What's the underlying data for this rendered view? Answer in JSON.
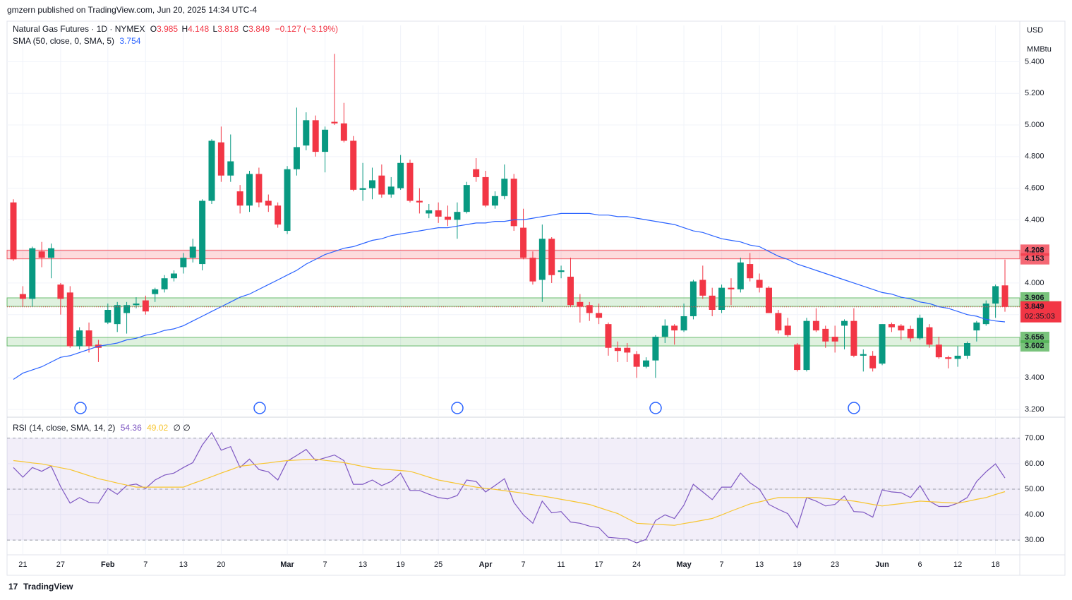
{
  "header": "gmzern published on TradingView.com, Jun 20, 2025 14:34 UTC-4",
  "footer": "TradingView",
  "chart_data": [
    {
      "type": "candlestick",
      "title": "Natural Gas Futures · 1D · NYMEX",
      "legend": {
        "o": "O",
        "h": "H",
        "l": "L",
        "c": "C",
        "change": "−0.127 (−3.19%)"
      },
      "currency": "USD",
      "unit": "MMBtu",
      "countdown": "02:35:03",
      "up_color": "#089981",
      "down_color": "#f23645",
      "categories": [
        null,
        "21",
        null,
        null,
        null,
        "27",
        null,
        null,
        null,
        null,
        "Feb",
        null,
        null,
        null,
        "7",
        null,
        null,
        null,
        "13",
        null,
        null,
        null,
        "20",
        null,
        null,
        null,
        null,
        null,
        null,
        "Mar",
        null,
        null,
        null,
        "7",
        null,
        null,
        null,
        "13",
        null,
        null,
        null,
        "19",
        null,
        null,
        null,
        "25",
        null,
        null,
        null,
        null,
        "Apr",
        null,
        null,
        null,
        "7",
        null,
        null,
        null,
        "11",
        null,
        null,
        null,
        "17",
        null,
        null,
        null,
        "24",
        null,
        null,
        null,
        null,
        "May",
        null,
        null,
        null,
        "7",
        null,
        null,
        null,
        "13",
        null,
        null,
        null,
        "19",
        null,
        null,
        null,
        "23",
        null,
        null,
        null,
        null,
        "Jun",
        null,
        null,
        null,
        "6",
        null,
        null,
        null,
        "12",
        null,
        null,
        null,
        "18",
        null
      ],
      "open": [
        4.51,
        3.93,
        3.9,
        4.2,
        4.16,
        3.99,
        3.94,
        3.6,
        3.7,
        3.61,
        3.75,
        3.74,
        3.81,
        3.86,
        3.89,
        3.93,
        3.96,
        4.03,
        4.1,
        4.16,
        4.12,
        4.52,
        4.89,
        4.68,
        4.58,
        4.49,
        4.69,
        4.52,
        4.49,
        4.33,
        4.72,
        4.87,
        5.03,
        4.83,
        5.02,
        5.01,
        4.9,
        4.59,
        4.6,
        4.68,
        4.56,
        4.6,
        4.76,
        4.52,
        4.44,
        4.46,
        4.42,
        4.4,
        4.45,
        4.72,
        4.67,
        4.49,
        4.55,
        4.66,
        4.35,
        4.16,
        4.02,
        4.28,
        4.07,
        4.04,
        3.88,
        3.86,
        3.81,
        3.74,
        3.59,
        3.59,
        3.55,
        3.47,
        3.51,
        3.66,
        3.73,
        3.7,
        3.79,
        4.02,
        3.92,
        3.83,
        3.97,
        3.96,
        4.12,
        4.02,
        3.97,
        3.81,
        3.73,
        3.61,
        3.45,
        3.76,
        3.71,
        3.66,
        3.73,
        3.76,
        3.54,
        3.54,
        3.49,
        3.74,
        3.73,
        3.71,
        3.65,
        3.72,
        3.61,
        3.53,
        3.52,
        3.54,
        3.7,
        3.74,
        3.87,
        3.985
      ],
      "high": [
        4.53,
        3.98,
        4.23,
        4.26,
        4.25,
        4.0,
        3.98,
        3.72,
        3.75,
        3.64,
        3.87,
        3.88,
        3.88,
        3.91,
        3.92,
        3.97,
        4.05,
        4.08,
        4.19,
        4.28,
        4.53,
        4.91,
        4.99,
        4.94,
        4.62,
        4.71,
        4.73,
        4.56,
        4.51,
        4.74,
        5.11,
        5.08,
        5.06,
        4.99,
        5.45,
        5.14,
        4.93,
        4.76,
        4.73,
        4.75,
        4.67,
        4.81,
        4.78,
        4.6,
        4.5,
        4.51,
        4.49,
        4.51,
        4.64,
        4.79,
        4.71,
        4.58,
        4.75,
        4.69,
        4.47,
        4.2,
        4.37,
        4.29,
        4.11,
        4.16,
        3.93,
        3.88,
        3.87,
        3.75,
        3.63,
        3.62,
        3.57,
        3.53,
        3.67,
        3.77,
        3.74,
        3.87,
        4.02,
        4.11,
        3.97,
        3.99,
        4.03,
        4.16,
        4.19,
        4.06,
        3.98,
        3.83,
        3.78,
        3.62,
        3.78,
        3.84,
        3.73,
        3.73,
        3.77,
        3.84,
        3.58,
        3.57,
        3.74,
        3.75,
        3.74,
        3.73,
        3.8,
        3.74,
        3.66,
        3.54,
        3.6,
        3.63,
        3.76,
        3.89,
        3.99,
        4.148
      ],
      "low": [
        4.14,
        3.85,
        3.85,
        4.1,
        4.03,
        3.8,
        3.59,
        3.58,
        3.56,
        3.5,
        3.74,
        3.69,
        3.68,
        3.84,
        3.8,
        3.88,
        3.94,
        4.01,
        4.06,
        4.13,
        4.08,
        4.5,
        4.64,
        4.64,
        4.44,
        4.45,
        4.48,
        4.45,
        4.35,
        4.31,
        4.68,
        4.84,
        4.8,
        4.7,
        5.0,
        4.89,
        4.58,
        4.52,
        4.53,
        4.54,
        4.54,
        4.59,
        4.51,
        4.44,
        4.41,
        4.38,
        4.36,
        4.28,
        4.44,
        4.64,
        4.48,
        4.47,
        4.53,
        4.33,
        4.15,
        3.99,
        3.88,
        4.0,
        4.03,
        3.85,
        3.75,
        3.76,
        3.74,
        3.54,
        3.5,
        3.5,
        3.4,
        3.46,
        3.4,
        3.62,
        3.61,
        3.69,
        3.77,
        3.9,
        3.79,
        3.81,
        3.86,
        3.94,
        4.01,
        3.94,
        3.81,
        3.68,
        3.66,
        3.44,
        3.44,
        3.69,
        3.59,
        3.56,
        3.58,
        3.53,
        3.44,
        3.44,
        3.48,
        3.69,
        3.64,
        3.63,
        3.64,
        3.59,
        3.52,
        3.46,
        3.47,
        3.52,
        3.63,
        3.73,
        3.78,
        3.818
      ],
      "close": [
        4.15,
        3.9,
        4.22,
        4.16,
        4.22,
        3.9,
        3.6,
        3.7,
        3.6,
        3.59,
        3.83,
        3.86,
        3.86,
        3.87,
        3.82,
        3.96,
        4.03,
        4.06,
        4.16,
        4.23,
        4.52,
        4.9,
        4.68,
        4.77,
        4.49,
        4.69,
        4.51,
        4.49,
        4.37,
        4.72,
        4.86,
        5.03,
        4.83,
        4.97,
        5.01,
        4.9,
        4.59,
        4.6,
        4.65,
        4.56,
        4.61,
        4.76,
        4.52,
        4.51,
        4.46,
        4.42,
        4.4,
        4.45,
        4.62,
        4.67,
        4.49,
        4.55,
        4.66,
        4.36,
        4.16,
        4.01,
        4.28,
        4.05,
        4.08,
        3.86,
        3.85,
        3.81,
        3.78,
        3.59,
        3.57,
        3.56,
        3.47,
        3.51,
        3.66,
        3.73,
        3.7,
        3.79,
        4.01,
        3.92,
        3.83,
        3.97,
        3.96,
        4.13,
        4.03,
        3.97,
        3.81,
        3.7,
        3.67,
        3.45,
        3.76,
        3.7,
        3.63,
        3.63,
        3.76,
        3.54,
        3.55,
        3.46,
        3.74,
        3.72,
        3.7,
        3.65,
        3.78,
        3.61,
        3.53,
        3.52,
        3.54,
        3.62,
        3.75,
        3.87,
        3.98,
        3.849
      ],
      "series": [
        {
          "name": "SMA (50, close, 0, SMA, 5)",
          "color": "#2962ff",
          "values": [
            3.39,
            3.43,
            3.45,
            3.47,
            3.5,
            3.53,
            3.54,
            3.56,
            3.58,
            3.6,
            3.61,
            3.62,
            3.64,
            3.65,
            3.67,
            3.68,
            3.7,
            3.71,
            3.73,
            3.76,
            3.79,
            3.82,
            3.85,
            3.88,
            3.91,
            3.93,
            3.96,
            3.99,
            4.02,
            4.05,
            4.08,
            4.12,
            4.15,
            4.18,
            4.2,
            4.22,
            4.23,
            4.25,
            4.27,
            4.28,
            4.3,
            4.31,
            4.32,
            4.33,
            4.34,
            4.35,
            4.35,
            4.36,
            4.37,
            4.38,
            4.38,
            4.39,
            4.39,
            4.4,
            4.4,
            4.41,
            4.42,
            4.43,
            4.44,
            4.44,
            4.44,
            4.44,
            4.43,
            4.43,
            4.42,
            4.42,
            4.41,
            4.4,
            4.39,
            4.38,
            4.37,
            4.35,
            4.33,
            4.32,
            4.3,
            4.28,
            4.27,
            4.26,
            4.24,
            4.23,
            4.2,
            4.17,
            4.15,
            4.12,
            4.1,
            4.08,
            4.06,
            4.04,
            4.02,
            4.0,
            3.98,
            3.96,
            3.94,
            3.93,
            3.91,
            3.9,
            3.88,
            3.87,
            3.85,
            3.84,
            3.82,
            3.8,
            3.79,
            3.77,
            3.76,
            3.754
          ]
        }
      ],
      "zones": [
        {
          "low": 4.153,
          "high": 4.208,
          "color": "#f23645"
        },
        {
          "low": 3.852,
          "high": 3.906,
          "color": "#4caf50"
        },
        {
          "low": 3.602,
          "high": 3.656,
          "color": "#4caf50"
        }
      ],
      "ylim": [
        3.16,
        5.63
      ],
      "yticks": [
        {
          "value": 3.2,
          "label": "3.200"
        },
        {
          "value": 3.4,
          "label": "3.400"
        },
        {
          "value": 3.6,
          "label": "3.600"
        },
        {
          "value": 3.8,
          "label": "3.800"
        },
        {
          "value": 4.0,
          "label": "4.000"
        },
        {
          "value": 4.2,
          "label": "4.200"
        },
        {
          "value": 4.4,
          "label": "4.400"
        },
        {
          "value": 4.6,
          "label": "4.600"
        },
        {
          "value": 4.8,
          "label": "4.800"
        },
        {
          "value": 5.0,
          "label": "5.000"
        },
        {
          "value": 5.2,
          "label": "5.200"
        },
        {
          "value": 5.4,
          "label": "5.400"
        }
      ],
      "grid": true
    },
    {
      "type": "line",
      "extra": "∅ ∅",
      "band": [
        30,
        70
      ],
      "midline": 50,
      "band_color": "#7e57c2",
      "series": [
        {
          "name": "RSI (14, close, SMA, 14, 2)",
          "color": "#7e57c2",
          "values": [
            58.5,
            54.7,
            58.5,
            57,
            59,
            51,
            44.5,
            46.7,
            44.8,
            44.5,
            50.3,
            48,
            51.4,
            52,
            50.3,
            53.6,
            55.5,
            56.3,
            58.5,
            60.4,
            67.3,
            72.2,
            65.3,
            66.7,
            58.5,
            61.8,
            57.7,
            56.8,
            53.6,
            61,
            63.2,
            65.6,
            61.2,
            62.3,
            63.4,
            61.2,
            51.9,
            51.9,
            53.6,
            51.4,
            53,
            56.3,
            49.5,
            49.5,
            48,
            46.7,
            46.2,
            47.5,
            53.6,
            53,
            48.9,
            51.4,
            54.1,
            44.8,
            39.9,
            36.6,
            45.3,
            40.7,
            41.2,
            37.1,
            36.6,
            35.5,
            34.9,
            31.1,
            30.8,
            30.5,
            28.9,
            30.3,
            37.7,
            39.9,
            38.5,
            43.7,
            51.9,
            48.9,
            45.9,
            50.8,
            50.8,
            56.3,
            52.5,
            50,
            44,
            42.1,
            40.4,
            34.9,
            46.7,
            45.3,
            43.4,
            44,
            47.3,
            41.2,
            41,
            39,
            49.7,
            48.9,
            48.6,
            46.7,
            51.4,
            45.3,
            43.2,
            43.2,
            44.5,
            46.7,
            53,
            56.8,
            59.9,
            54.36
          ]
        },
        {
          "color": "#f7c530",
          "values": [
            61.2,
            60.8,
            60.3,
            59.9,
            59.2,
            58.4,
            57.7,
            56.5,
            55.3,
            54.1,
            53.3,
            52.4,
            51.6,
            50.8,
            50.8,
            50.8,
            50.8,
            50.8,
            50.8,
            52.2,
            53.5,
            54.9,
            56.3,
            57.6,
            59,
            59.4,
            59.9,
            60.3,
            60.8,
            61.2,
            61.4,
            61.6,
            61.8,
            61.3,
            60.9,
            60.4,
            59.7,
            58.9,
            58.2,
            57.9,
            57.6,
            57.3,
            57,
            55.9,
            54.7,
            53.6,
            52.9,
            52.2,
            51.5,
            50.8,
            50.3,
            49.9,
            49.4,
            48.9,
            48.4,
            47.8,
            47.3,
            46.7,
            46,
            45.4,
            44.7,
            44,
            42.8,
            41.6,
            40.4,
            38.5,
            36.6,
            36.4,
            36.2,
            36,
            35.8,
            36.5,
            37.1,
            37.8,
            38.5,
            39.9,
            41.4,
            42.8,
            44.2,
            45,
            45.9,
            46.7,
            46.7,
            46.7,
            46.7,
            46.7,
            46.4,
            46,
            45.7,
            45.3,
            44.7,
            44,
            43.4,
            43.9,
            44.3,
            44.8,
            45.3,
            45.1,
            44.9,
            44.7,
            44.5,
            45.2,
            46,
            46.7,
            47.9,
            49.02
          ]
        }
      ],
      "ylim": [
        24.5,
        77.7
      ],
      "yticks": [
        {
          "value": 30,
          "label": "30.00"
        },
        {
          "value": 40,
          "label": "40.00"
        },
        {
          "value": 50,
          "label": "50.00"
        },
        {
          "value": 60,
          "label": "60.00"
        },
        {
          "value": 70,
          "label": "70.00"
        }
      ],
      "grid": true
    }
  ]
}
